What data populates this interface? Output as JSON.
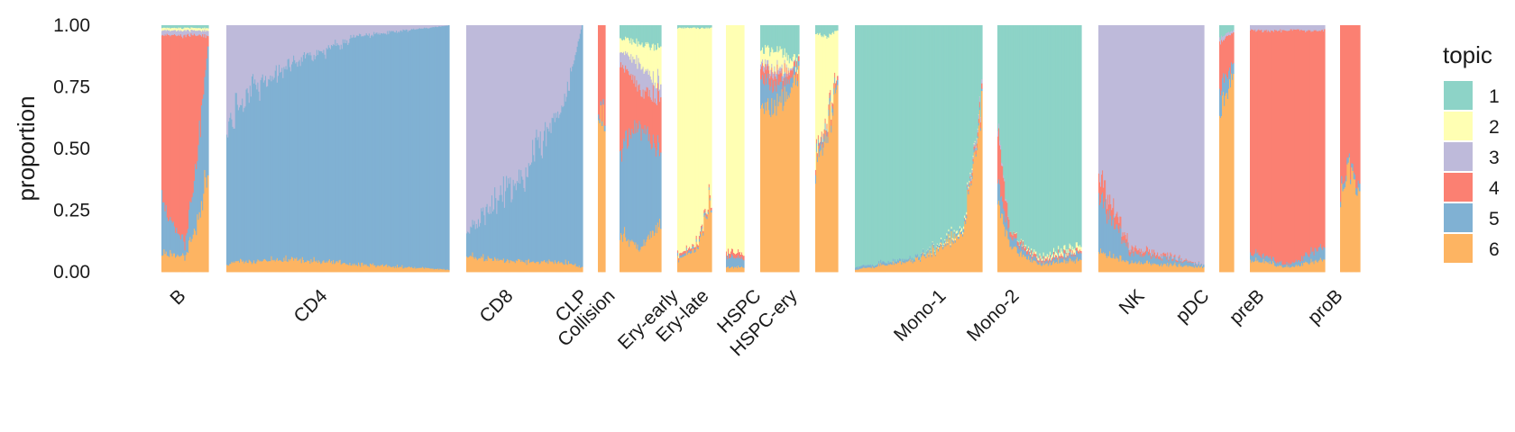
{
  "chart_data": {
    "type": "bar",
    "subtype": "stacked-structure-plot",
    "ylabel": "proportion",
    "xlabel": "",
    "ylim": [
      0,
      1
    ],
    "y_ticks": [
      "0.00",
      "0.25",
      "0.50",
      "0.75",
      "1.00"
    ],
    "grid": false,
    "legend": {
      "title": "topic",
      "position": "right",
      "entries": [
        {
          "label": "1",
          "color": "#8DD3C7"
        },
        {
          "label": "2",
          "color": "#FFFFB3"
        },
        {
          "label": "3",
          "color": "#BEBADA"
        },
        {
          "label": "4",
          "color": "#FB8072"
        },
        {
          "label": "5",
          "color": "#80B1D3"
        },
        {
          "label": "6",
          "color": "#FDB462"
        }
      ]
    },
    "stack_order_bottom_to_top": [
      "6",
      "5",
      "4",
      "3",
      "2",
      "1"
    ],
    "groups": [
      {
        "label": "B",
        "n": 45,
        "profiles": [
          {
            "t": 0.0,
            "p": [
              0.08,
              0.22,
              0.66,
              0.02,
              0.01,
              0.01
            ]
          },
          {
            "t": 0.5,
            "p": [
              0.06,
              0.04,
              0.86,
              0.02,
              0.01,
              0.01
            ]
          },
          {
            "t": 0.8,
            "p": [
              0.22,
              0.3,
              0.44,
              0.02,
              0.01,
              0.01
            ]
          },
          {
            "t": 1.0,
            "p": [
              0.4,
              0.52,
              0.04,
              0.02,
              0.01,
              0.01
            ]
          }
        ]
      },
      {
        "label": "CD4",
        "n": 230,
        "profiles": [
          {
            "t": 0.0,
            "p": [
              0.03,
              0.55,
              0.0,
              0.42,
              0.0,
              0.0
            ]
          },
          {
            "t": 0.05,
            "p": [
              0.04,
              0.66,
              0.0,
              0.3,
              0.0,
              0.0
            ]
          },
          {
            "t": 0.3,
            "p": [
              0.05,
              0.8,
              0.0,
              0.15,
              0.0,
              0.0
            ]
          },
          {
            "t": 0.6,
            "p": [
              0.03,
              0.93,
              0.0,
              0.04,
              0.0,
              0.0
            ]
          },
          {
            "t": 1.0,
            "p": [
              0.01,
              0.99,
              0.0,
              0.0,
              0.0,
              0.0
            ]
          }
        ]
      },
      {
        "label": "CD8",
        "n": 120,
        "profiles": [
          {
            "t": 0.0,
            "p": [
              0.06,
              0.1,
              0.0,
              0.84,
              0.0,
              0.0
            ]
          },
          {
            "t": 0.5,
            "p": [
              0.04,
              0.36,
              0.0,
              0.6,
              0.0,
              0.0
            ]
          },
          {
            "t": 0.85,
            "p": [
              0.04,
              0.66,
              0.0,
              0.3,
              0.0,
              0.0
            ]
          },
          {
            "t": 1.0,
            "p": [
              0.02,
              0.98,
              0.0,
              0.0,
              0.0,
              0.0
            ]
          }
        ]
      },
      {
        "label": "CLP",
        "n": 6,
        "profiles": [
          {
            "t": 0.0,
            "p": [
              0.6,
              0.02,
              0.38,
              0.0,
              0.0,
              0.0
            ]
          },
          {
            "t": 1.0,
            "p": [
              0.6,
              0.02,
              0.38,
              0.0,
              0.0,
              0.0
            ]
          }
        ]
      },
      {
        "label": "Collision",
        "n": 45,
        "profiles": [
          {
            "t": 0.0,
            "p": [
              0.15,
              0.35,
              0.35,
              0.05,
              0.05,
              0.05
            ]
          },
          {
            "t": 0.5,
            "p": [
              0.1,
              0.5,
              0.15,
              0.1,
              0.08,
              0.07
            ]
          },
          {
            "t": 1.0,
            "p": [
              0.2,
              0.3,
              0.2,
              0.05,
              0.15,
              0.1
            ]
          }
        ]
      },
      {
        "label": "Ery-early",
        "n": 35,
        "profiles": [
          {
            "t": 0.0,
            "p": [
              0.05,
              0.01,
              0.01,
              0.0,
              0.92,
              0.01
            ]
          },
          {
            "t": 0.6,
            "p": [
              0.1,
              0.01,
              0.01,
              0.0,
              0.87,
              0.01
            ]
          },
          {
            "t": 1.0,
            "p": [
              0.3,
              0.01,
              0.01,
              0.0,
              0.67,
              0.01
            ]
          }
        ]
      },
      {
        "label": "Ery-late",
        "n": 20,
        "profiles": [
          {
            "t": 0.0,
            "p": [
              0.02,
              0.04,
              0.02,
              0.0,
              0.92,
              0.0
            ]
          },
          {
            "t": 1.0,
            "p": [
              0.02,
              0.04,
              0.02,
              0.0,
              0.92,
              0.0
            ]
          }
        ]
      },
      {
        "label": "HSPC",
        "n": 42,
        "profiles": [
          {
            "t": 0.0,
            "p": [
              0.66,
              0.12,
              0.05,
              0.02,
              0.05,
              0.1
            ]
          },
          {
            "t": 0.5,
            "p": [
              0.68,
              0.08,
              0.04,
              0.02,
              0.08,
              0.1
            ]
          },
          {
            "t": 1.0,
            "p": [
              0.8,
              0.02,
              0.02,
              0.0,
              0.01,
              0.15
            ]
          }
        ]
      },
      {
        "label": "HSPC-ery",
        "n": 26,
        "profiles": [
          {
            "t": 0.0,
            "p": [
              0.42,
              0.03,
              0.02,
              0.0,
              0.5,
              0.03
            ]
          },
          {
            "t": 0.5,
            "p": [
              0.55,
              0.03,
              0.02,
              0.0,
              0.35,
              0.05
            ]
          },
          {
            "t": 1.0,
            "p": [
              0.76,
              0.02,
              0.02,
              0.0,
              0.18,
              0.02
            ]
          }
        ]
      },
      {
        "label": "Mono-1",
        "n": 135,
        "profiles": [
          {
            "t": 0.0,
            "p": [
              0.01,
              0.01,
              0.0,
              0.0,
              0.0,
              0.98
            ]
          },
          {
            "t": 0.5,
            "p": [
              0.05,
              0.01,
              0.0,
              0.0,
              0.0,
              0.94
            ]
          },
          {
            "t": 0.85,
            "p": [
              0.16,
              0.01,
              0.0,
              0.0,
              0.01,
              0.82
            ]
          },
          {
            "t": 1.0,
            "p": [
              0.68,
              0.01,
              0.02,
              0.02,
              0.0,
              0.27
            ]
          }
        ]
      },
      {
        "label": "Mono-2",
        "n": 90,
        "profiles": [
          {
            "t": 0.0,
            "p": [
              0.3,
              0.08,
              0.2,
              0.02,
              0.0,
              0.4
            ]
          },
          {
            "t": 0.15,
            "p": [
              0.1,
              0.04,
              0.02,
              0.0,
              0.0,
              0.84
            ]
          },
          {
            "t": 0.5,
            "p": [
              0.03,
              0.01,
              0.01,
              0.0,
              0.01,
              0.94
            ]
          },
          {
            "t": 1.0,
            "p": [
              0.05,
              0.03,
              0.01,
              0.0,
              0.02,
              0.89
            ]
          }
        ]
      },
      {
        "label": "NK",
        "n": 115,
        "profiles": [
          {
            "t": 0.0,
            "p": [
              0.08,
              0.22,
              0.08,
              0.62,
              0.0,
              0.0
            ]
          },
          {
            "t": 0.3,
            "p": [
              0.04,
              0.04,
              0.02,
              0.9,
              0.0,
              0.0
            ]
          },
          {
            "t": 1.0,
            "p": [
              0.02,
              0.01,
              0.0,
              0.97,
              0.0,
              0.0
            ]
          }
        ]
      },
      {
        "label": "pDC",
        "n": 16,
        "profiles": [
          {
            "t": 0.0,
            "p": [
              0.65,
              0.1,
              0.18,
              0.02,
              0.0,
              0.05
            ]
          },
          {
            "t": 1.0,
            "p": [
              0.8,
              0.05,
              0.12,
              0.01,
              0.0,
              0.02
            ]
          }
        ]
      },
      {
        "label": "preB",
        "n": 80,
        "profiles": [
          {
            "t": 0.0,
            "p": [
              0.05,
              0.03,
              0.9,
              0.02,
              0.0,
              0.0
            ]
          },
          {
            "t": 0.5,
            "p": [
              0.02,
              0.01,
              0.95,
              0.02,
              0.0,
              0.0
            ]
          },
          {
            "t": 1.0,
            "p": [
              0.05,
              0.05,
              0.88,
              0.02,
              0.0,
              0.0
            ]
          }
        ]
      },
      {
        "label": "proB",
        "n": 18,
        "profiles": [
          {
            "t": 0.0,
            "p": [
              0.3,
              0.03,
              0.67,
              0.0,
              0.0,
              0.0
            ]
          },
          {
            "t": 0.5,
            "p": [
              0.45,
              0.02,
              0.53,
              0.0,
              0.0,
              0.0
            ]
          },
          {
            "t": 1.0,
            "p": [
              0.3,
              0.03,
              0.67,
              0.0,
              0.0,
              0.0
            ]
          }
        ]
      }
    ]
  }
}
